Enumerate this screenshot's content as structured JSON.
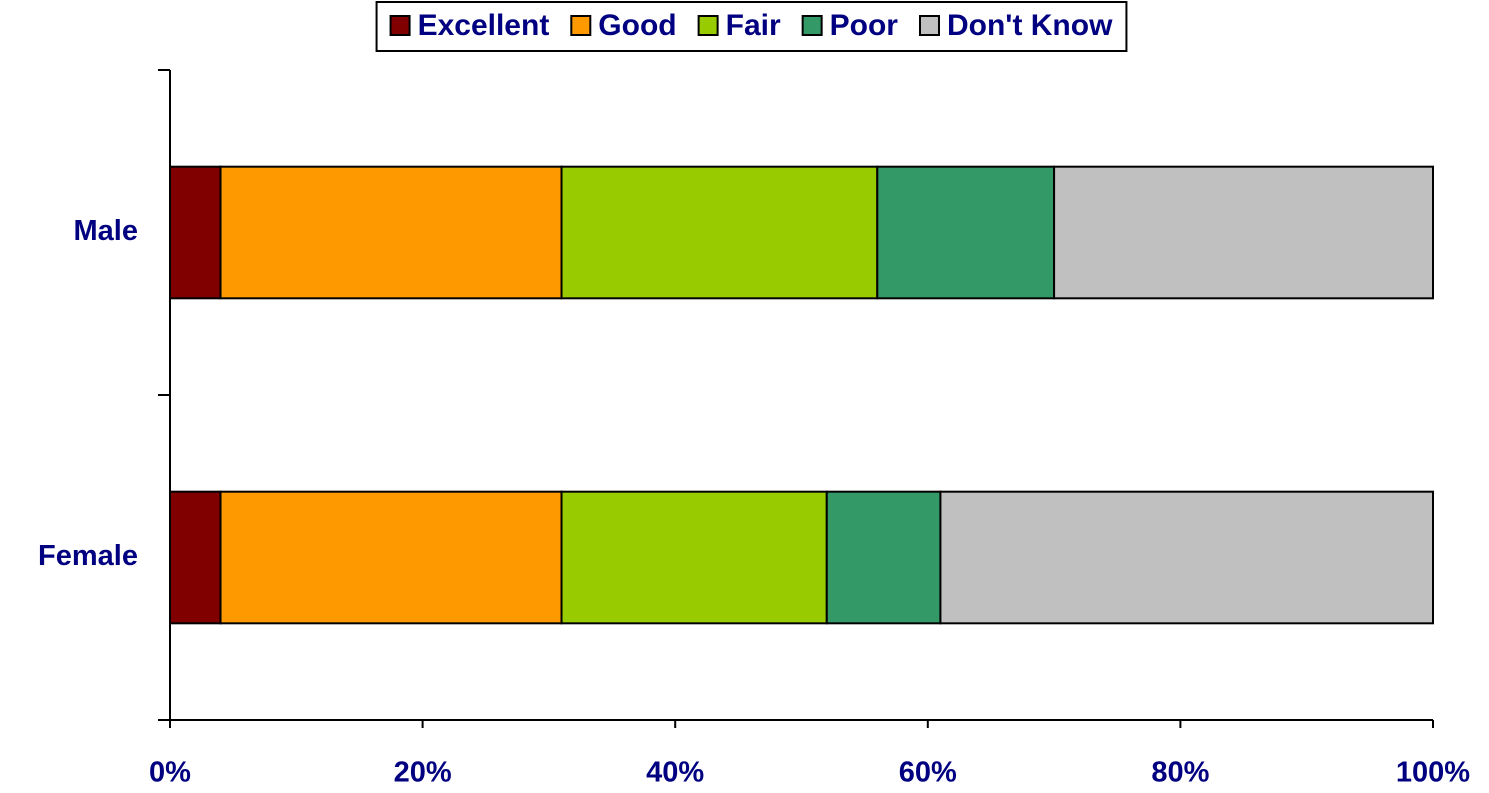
{
  "chart_data": {
    "type": "stacked_bar_horizontal",
    "categories": [
      "Male",
      "Female"
    ],
    "series": [
      {
        "name": "Excellent",
        "color": "#800000",
        "values": [
          4,
          4
        ]
      },
      {
        "name": "Good",
        "color": "#ff9900",
        "values": [
          27,
          27
        ]
      },
      {
        "name": "Fair",
        "color": "#99cc00",
        "values": [
          25,
          21
        ]
      },
      {
        "name": "Poor",
        "color": "#339966",
        "values": [
          14,
          9
        ]
      },
      {
        "name": "Don't Know",
        "color": "#c0c0c0",
        "values": [
          30,
          39
        ]
      }
    ],
    "xlim": [
      0,
      100
    ],
    "xticks": [
      {
        "value": 0,
        "label": "0%"
      },
      {
        "value": 20,
        "label": "20%"
      },
      {
        "value": 40,
        "label": "40%"
      },
      {
        "value": 60,
        "label": "60%"
      },
      {
        "value": 80,
        "label": "80%"
      },
      {
        "value": 100,
        "label": "100%"
      }
    ],
    "legend": "top"
  }
}
